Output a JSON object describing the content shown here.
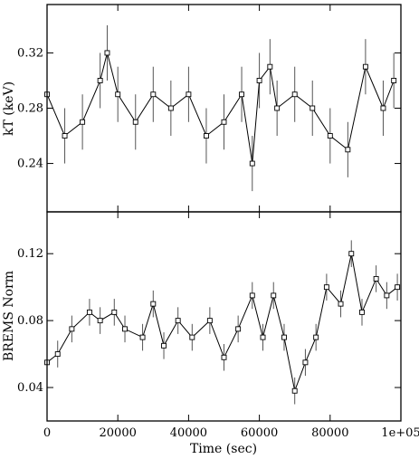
{
  "chart_data": [
    {
      "type": "line",
      "title": "",
      "xlabel": "",
      "ylabel": "kT (keV)",
      "xlim": [
        0,
        100000
      ],
      "ylim": [
        0.205,
        0.355
      ],
      "x_ticks": [
        0,
        20000,
        40000,
        60000,
        80000,
        100000
      ],
      "y_ticks": [
        0.24,
        0.28,
        0.32
      ],
      "y_tick_labels": [
        "0.24",
        "0.28",
        "0.32"
      ],
      "grid": false,
      "markers": "open-square",
      "error_bars": true,
      "series": [
        {
          "x": [
            0,
            5000,
            10000,
            15000,
            17000,
            20000,
            25000,
            30000,
            35000,
            40000,
            45000,
            50000,
            55000,
            58000,
            60000,
            63000,
            65000,
            70000,
            75000,
            80000,
            85000,
            90000,
            95000,
            98000
          ],
          "y": [
            0.29,
            0.26,
            0.27,
            0.3,
            0.32,
            0.29,
            0.27,
            0.29,
            0.28,
            0.29,
            0.26,
            0.27,
            0.29,
            0.24,
            0.3,
            0.31,
            0.28,
            0.29,
            0.28,
            0.26,
            0.25,
            0.31,
            0.28,
            0.3
          ],
          "err": [
            0.02,
            0.02,
            0.02,
            0.02,
            0.02,
            0.02,
            0.02,
            0.02,
            0.02,
            0.02,
            0.02,
            0.02,
            0.02,
            0.02,
            0.02,
            0.02,
            0.02,
            0.02,
            0.02,
            0.02,
            0.02,
            0.02,
            0.02,
            0.02
          ]
        }
      ]
    },
    {
      "type": "line",
      "title": "",
      "xlabel": "Time (sec)",
      "ylabel": "BREMS Norm",
      "xlim": [
        0,
        100000
      ],
      "ylim": [
        0.02,
        0.145
      ],
      "x_ticks": [
        0,
        20000,
        40000,
        60000,
        80000,
        100000
      ],
      "x_tick_labels": [
        "0",
        "20000",
        "40000",
        "60000",
        "80000",
        "1e+05"
      ],
      "y_ticks": [
        0.04,
        0.08,
        0.12
      ],
      "y_tick_labels": [
        "0.04",
        "0.08",
        "0.12"
      ],
      "grid": false,
      "markers": "open-square",
      "error_bars": true,
      "series": [
        {
          "x": [
            0,
            3000,
            7000,
            12000,
            15000,
            19000,
            22000,
            27000,
            30000,
            33000,
            37000,
            41000,
            46000,
            50000,
            54000,
            58000,
            61000,
            64000,
            67000,
            70000,
            73000,
            76000,
            79000,
            83000,
            86000,
            89000,
            93000,
            96000,
            99000
          ],
          "y": [
            0.055,
            0.06,
            0.075,
            0.085,
            0.08,
            0.085,
            0.075,
            0.07,
            0.09,
            0.065,
            0.08,
            0.07,
            0.08,
            0.058,
            0.075,
            0.095,
            0.07,
            0.095,
            0.07,
            0.038,
            0.055,
            0.07,
            0.1,
            0.09,
            0.12,
            0.085,
            0.105,
            0.095,
            0.1
          ],
          "err": [
            0.008,
            0.008,
            0.008,
            0.008,
            0.008,
            0.008,
            0.008,
            0.008,
            0.008,
            0.008,
            0.008,
            0.008,
            0.008,
            0.008,
            0.008,
            0.008,
            0.008,
            0.008,
            0.008,
            0.008,
            0.008,
            0.008,
            0.008,
            0.008,
            0.008,
            0.008,
            0.008,
            0.008,
            0.008
          ]
        }
      ]
    }
  ]
}
